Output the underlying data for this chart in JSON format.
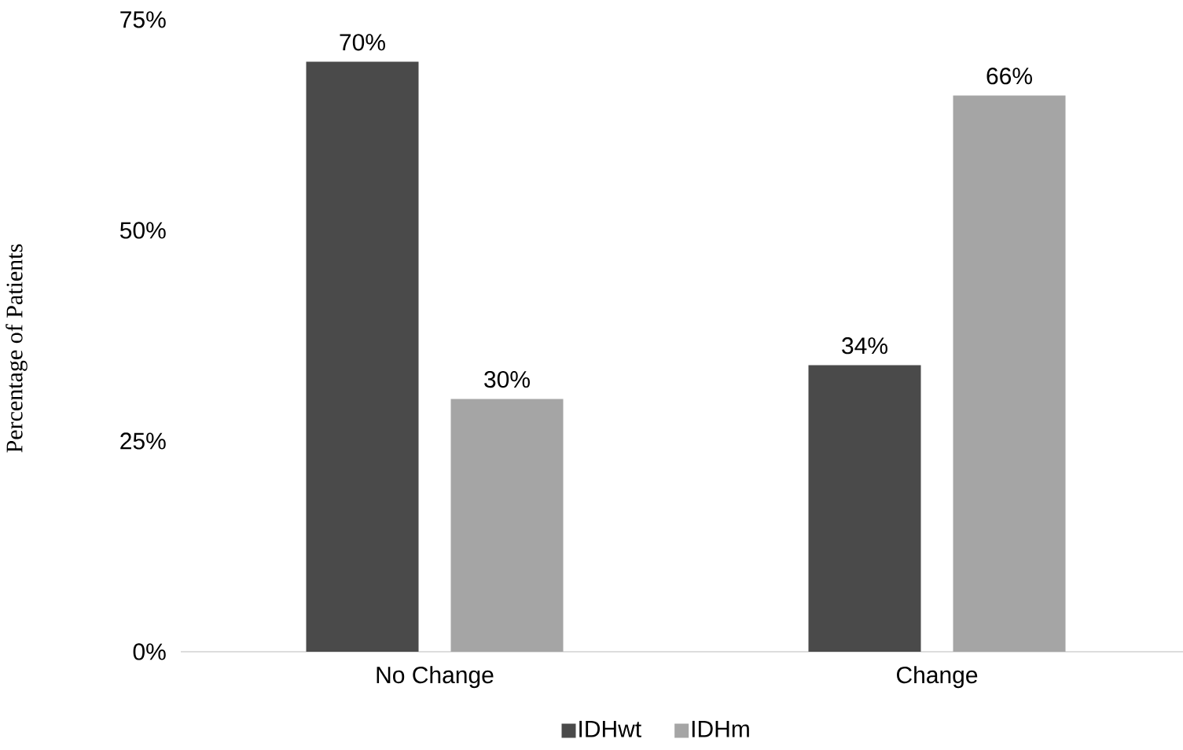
{
  "chart_data": {
    "type": "bar",
    "ylabel": "Percentage of Patients",
    "categories": [
      "No Change",
      "Change"
    ],
    "series": [
      {
        "name": "IDHwt",
        "color": "#4a4a4a",
        "values": [
          70,
          34
        ],
        "value_labels": [
          "70%",
          "34%"
        ]
      },
      {
        "name": "IDHm",
        "color": "#a5a5a5",
        "values": [
          30,
          66
        ],
        "value_labels": [
          "30%",
          "66%"
        ]
      }
    ],
    "ylim": [
      0,
      75
    ],
    "yticks": [
      {
        "value": 0,
        "label": "0%"
      },
      {
        "value": 25,
        "label": "25%"
      },
      {
        "value": 50,
        "label": "50%"
      },
      {
        "value": 75,
        "label": "75%"
      }
    ],
    "legend": "bottom",
    "grid": false
  }
}
